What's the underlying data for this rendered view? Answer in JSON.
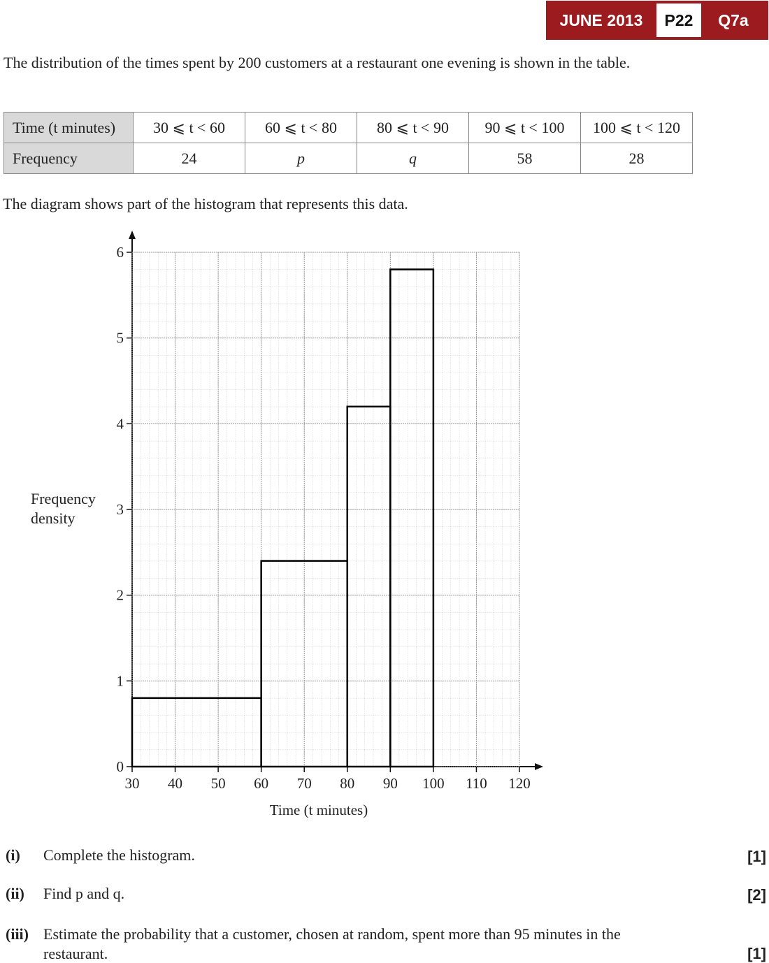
{
  "header": {
    "session": "JUNE 2013",
    "paper": "P22",
    "question": "Q7a"
  },
  "intro": "The distribution of the times spent by 200 customers at a restaurant one evening is shown in the table.",
  "table": {
    "rows": [
      [
        "Time (t minutes)",
        "30 ⩽ t < 60",
        "60 ⩽ t < 80",
        "80 ⩽ t < 90",
        "90 ⩽ t < 100",
        "100 ⩽ t < 120"
      ],
      [
        "Frequency",
        24,
        "p",
        "q",
        58,
        28
      ]
    ]
  },
  "diagram_text": "The diagram shows part of the histogram that represents this data.",
  "chart_data": {
    "type": "histogram",
    "bins": [
      30,
      60,
      80,
      90,
      100
    ],
    "values": [
      0.8,
      2.4,
      4.2,
      5.8
    ],
    "color": "#000000",
    "xlim": [
      30,
      120
    ],
    "xticks": [
      30,
      40,
      50,
      60,
      70,
      80,
      90,
      100,
      110,
      120
    ],
    "ylim": [
      0,
      6
    ],
    "yticks": [
      0,
      1,
      2,
      3,
      4,
      5,
      6
    ],
    "x_label": "Time (t minutes)",
    "y_label": "Frequency density",
    "grid": true
  },
  "questions": [
    {
      "label": "(i)",
      "text": "Complete the histogram.",
      "marks": "[1]"
    },
    {
      "label": "(ii)",
      "text": "Find p and q.",
      "marks": "[2]"
    },
    {
      "label": "(iii)",
      "text": "Estimate the probability that a customer, chosen at random, spent more than 95 minutes in the restaurant.",
      "marks": "[1]"
    }
  ]
}
